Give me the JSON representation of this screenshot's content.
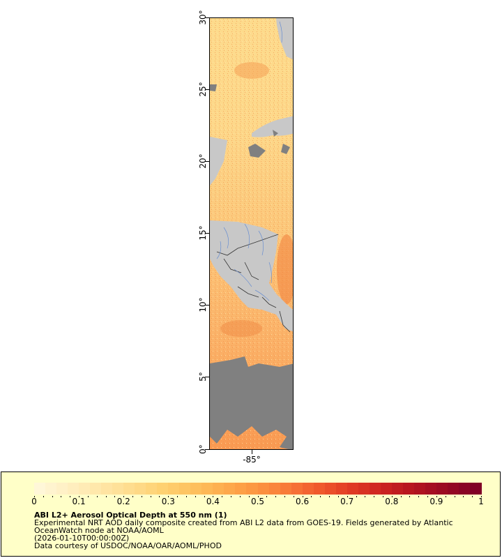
{
  "map": {
    "lat_ticks": [
      "0°",
      "5°",
      "10°",
      "15°",
      "20°",
      "25°",
      "30°"
    ],
    "lon_ticks": [
      "-85°"
    ],
    "colors": {
      "land": "#c8c8c8",
      "no_data": "#808080",
      "water_low": "#ffe9a8",
      "water_mid": "#fdb856",
      "water_high": "#e8572a",
      "river": "#6a8fd0",
      "border": "#333333"
    }
  },
  "legend": {
    "ticks": [
      "0",
      "0.1",
      "0.2",
      "0.3",
      "0.4",
      "0.5",
      "0.6",
      "0.7",
      "0.8",
      "0.9",
      "1"
    ],
    "title": "ABI L2+ Aerosol Optical Depth at 550 nm (1)",
    "line1": "Experimental NRT AOD daily composite created from ABI L2 data from GOES-19. Fields generated by Atlantic OceanWatch node at NOAA/AOML",
    "line2": "(2026-01-10T00:00:00Z)",
    "line3": "Data courtesy of USDOC/NOAA/OAR/AOML/PHOD",
    "colormap": [
      "#fff7d8",
      "#ffefc0",
      "#ffe6a6",
      "#fedc8c",
      "#fed070",
      "#fdc05c",
      "#fdaa4c",
      "#fc9440",
      "#f87838",
      "#f0582c",
      "#e03a24",
      "#cc2320",
      "#b4141f",
      "#9a0a22",
      "#800026"
    ],
    "background": "#ffffc8"
  }
}
